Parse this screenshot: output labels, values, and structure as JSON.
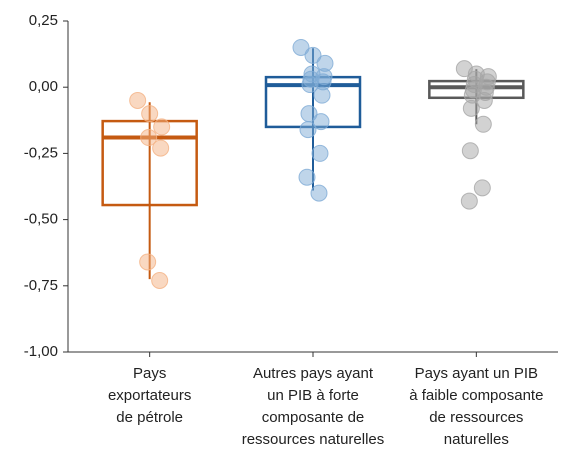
{
  "chart_data": {
    "type": "box",
    "categories": [
      [
        "Pays",
        "exportateurs",
        "de pétrole"
      ],
      [
        "Autres pays ayant",
        "un PIB à forte",
        "composante de",
        "ressources naturelles"
      ],
      [
        "Pays ayant un PIB",
        "à faible composante",
        "de ressources",
        "naturelles"
      ]
    ],
    "ylim": [
      -1.0,
      0.25
    ],
    "yticks": [
      {
        "value": 0.25,
        "label": "0,25"
      },
      {
        "value": 0,
        "label": "0,00"
      },
      {
        "value": -0.25,
        "label": "-0,25"
      },
      {
        "value": -0.5,
        "label": "-0,50"
      },
      {
        "value": -0.75,
        "label": "-0,75"
      },
      {
        "value": -1.0,
        "label": "-1,00"
      }
    ],
    "boxes": [
      {
        "color": "#c55a11",
        "point_color": "#f4b183",
        "whisker_low": -0.725,
        "q1": -0.445,
        "median": -0.19,
        "q3": -0.128,
        "whisker_high": -0.057,
        "points": [
          -0.05,
          -0.1,
          -0.15,
          -0.19,
          -0.23,
          -0.66,
          -0.73
        ]
      },
      {
        "color": "#1f5c99",
        "point_color": "#7fabd6",
        "whisker_low": -0.39,
        "q1": -0.15,
        "median": 0.008,
        "q3": 0.038,
        "whisker_high": 0.147,
        "points": [
          0.15,
          0.12,
          0.09,
          0.05,
          0.04,
          0.03,
          0.02,
          0.01,
          -0.03,
          -0.1,
          -0.13,
          -0.16,
          -0.25,
          -0.34,
          -0.4
        ]
      },
      {
        "color": "#595959",
        "point_color": "#a6a6a6",
        "whisker_low": -0.14,
        "q1": -0.04,
        "median": 0.0,
        "q3": 0.023,
        "whisker_high": 0.068,
        "points": [
          0.07,
          0.05,
          0.04,
          0.03,
          0.02,
          0.01,
          0.0,
          -0.01,
          -0.02,
          -0.03,
          -0.05,
          -0.08,
          -0.14,
          -0.24,
          -0.38,
          -0.43
        ]
      }
    ]
  }
}
